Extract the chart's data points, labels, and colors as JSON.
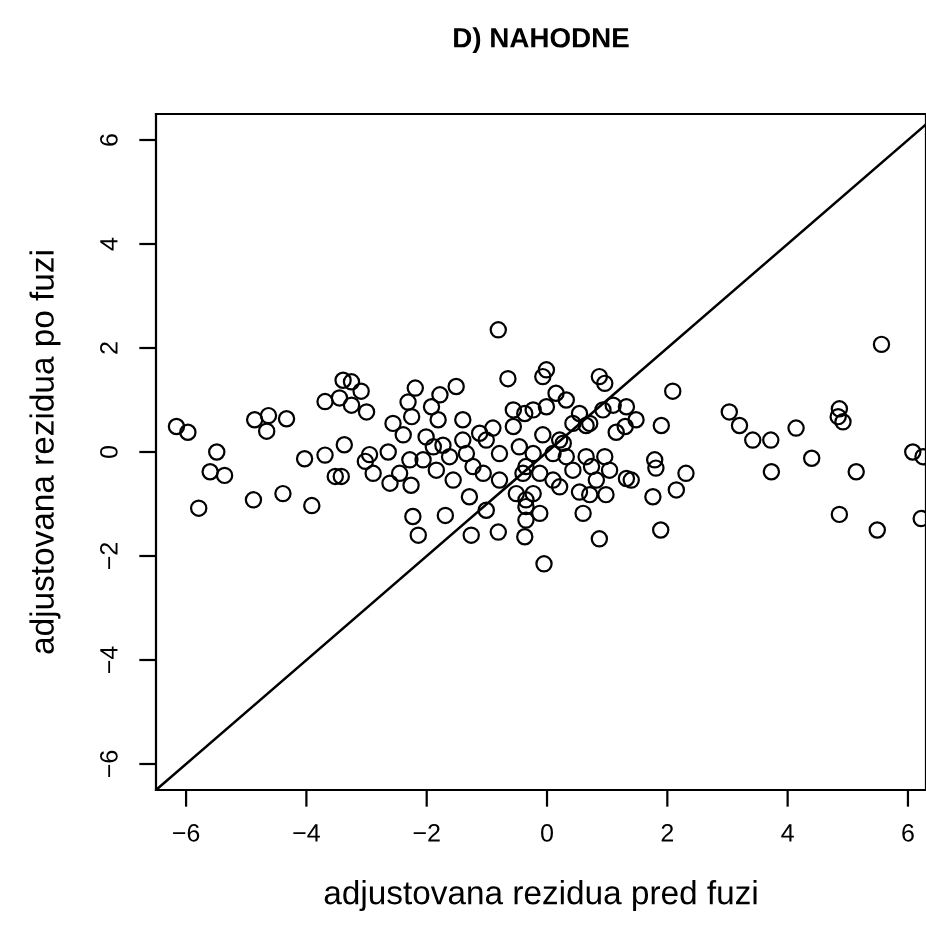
{
  "chart_data": {
    "type": "scatter",
    "title": "D) NAHODNE",
    "xlabel": "adjustovana rezidua pred fuzi",
    "ylabel": "adjustovana rezidua po fuzi",
    "xlim": [
      -6.5,
      6.3
    ],
    "ylim": [
      -6.5,
      6.5
    ],
    "xticks": [
      {
        "value": -6,
        "label": "−6"
      },
      {
        "value": -4,
        "label": "−4"
      },
      {
        "value": -2,
        "label": "−2"
      },
      0,
      2,
      4,
      6
    ],
    "yticks": [
      {
        "value": -6,
        "label": "−6"
      },
      {
        "value": -4,
        "label": "−4"
      },
      {
        "value": -2,
        "label": "−2"
      },
      0,
      2,
      4,
      6
    ],
    "grid": false,
    "legend": false,
    "marker": "circle",
    "series": [
      {
        "color": "#000000",
        "x": [
          -6.16,
          -5.97,
          -5.49,
          -5.6,
          -5.36,
          -5.79,
          -4.86,
          -4.63,
          -4.66,
          -4.33,
          -4.88,
          -4.39,
          -4.03,
          -3.91,
          -3.69,
          -3.39,
          -3.25,
          -3.45,
          -3.25,
          -3.09,
          -3.0,
          -3.69,
          -3.52,
          -3.42,
          -3.37,
          -3.02,
          -2.89,
          -2.95,
          -2.64,
          -2.56,
          -2.61,
          -2.45,
          -2.31,
          -2.19,
          -2.25,
          -2.39,
          -2.28,
          -2.06,
          -2.26,
          -2.23,
          -2.14,
          -1.69,
          -1.92,
          -1.78,
          -1.51,
          -1.81,
          -2.01,
          -1.89,
          -1.73,
          -1.62,
          -1.84,
          -1.56,
          -1.4,
          -1.4,
          -1.34,
          -1.23,
          -1.29,
          -1.26,
          -1.01,
          -0.81,
          -1.12,
          -1.01,
          -0.9,
          -1.06,
          -0.79,
          -0.79,
          -0.65,
          -0.81,
          -0.56,
          -0.37,
          -0.56,
          -0.46,
          -0.4,
          -0.51,
          -0.35,
          -0.37,
          -0.23,
          -0.07,
          -0.01,
          -0.23,
          -0.01,
          0.15,
          0.32,
          -0.07,
          0.21,
          0.27,
          0.1,
          0.43,
          0.54,
          0.65,
          0.71,
          0.87,
          0.96,
          0.93,
          1.1,
          1.32,
          1.3,
          1.48,
          1.15,
          2.09,
          1.9,
          -0.23,
          -0.35,
          -0.12,
          0.1,
          0.32,
          0.43,
          0.65,
          0.74,
          0.96,
          1.04,
          0.82,
          0.54,
          0.71,
          0.98,
          0.6,
          1.32,
          1.4,
          1.79,
          1.81,
          2.31,
          2.15,
          1.76,
          1.89,
          0.87,
          -0.35,
          -0.35,
          -0.12,
          0.21,
          3.03,
          3.2,
          3.42,
          3.72,
          3.73,
          4.14,
          4.4,
          4.86,
          4.84,
          4.92,
          5.14,
          4.86,
          5.49,
          5.56,
          6.08,
          6.25,
          6.22,
          -0.05
        ],
        "values": [
          0.49,
          0.38,
          0.0,
          -0.38,
          -0.45,
          -1.08,
          0.62,
          0.7,
          0.4,
          0.64,
          -0.92,
          -0.8,
          -0.13,
          -1.03,
          0.97,
          1.38,
          1.35,
          1.04,
          0.9,
          1.17,
          0.77,
          -0.06,
          -0.47,
          -0.47,
          0.14,
          -0.18,
          -0.41,
          -0.05,
          0.0,
          0.55,
          -0.6,
          -0.41,
          0.96,
          1.23,
          0.68,
          0.33,
          -0.15,
          -0.15,
          -0.64,
          -1.24,
          -1.6,
          -1.22,
          0.87,
          1.1,
          1.26,
          0.62,
          0.29,
          0.1,
          0.13,
          -0.09,
          -0.35,
          -0.54,
          0.62,
          0.23,
          -0.03,
          -0.28,
          -0.86,
          -1.6,
          -1.12,
          -1.54,
          0.36,
          0.23,
          0.46,
          -0.41,
          -0.03,
          -0.54,
          1.41,
          2.35,
          0.81,
          0.74,
          0.49,
          0.1,
          -0.41,
          -0.8,
          -1.05,
          -1.63,
          -0.8,
          1.45,
          1.58,
          0.81,
          0.87,
          1.13,
          1.0,
          0.33,
          0.23,
          0.17,
          -0.03,
          0.55,
          0.74,
          0.51,
          0.55,
          1.45,
          1.32,
          0.81,
          0.9,
          0.87,
          0.49,
          0.62,
          0.38,
          1.17,
          0.51,
          -0.03,
          -0.28,
          -0.41,
          -0.54,
          -0.09,
          -0.35,
          -0.09,
          -0.28,
          -0.09,
          -0.35,
          -0.54,
          -0.77,
          -0.82,
          -0.82,
          -1.18,
          -0.51,
          -0.54,
          -0.15,
          -0.31,
          -0.41,
          -0.73,
          -0.86,
          -1.5,
          -1.67,
          -0.92,
          -1.31,
          -1.18,
          -0.67,
          0.77,
          0.51,
          0.23,
          0.23,
          -0.38,
          0.46,
          -0.12,
          0.83,
          0.68,
          0.58,
          -0.38,
          -1.2,
          -1.5,
          2.07,
          0.0,
          -0.09,
          -1.28,
          -2.15
        ]
      },
      {
        "type": "line",
        "color": "#000000",
        "x": [
          -6.5,
          6.3
        ],
        "values": [
          -6.5,
          6.3
        ],
        "marker": "none"
      }
    ]
  }
}
